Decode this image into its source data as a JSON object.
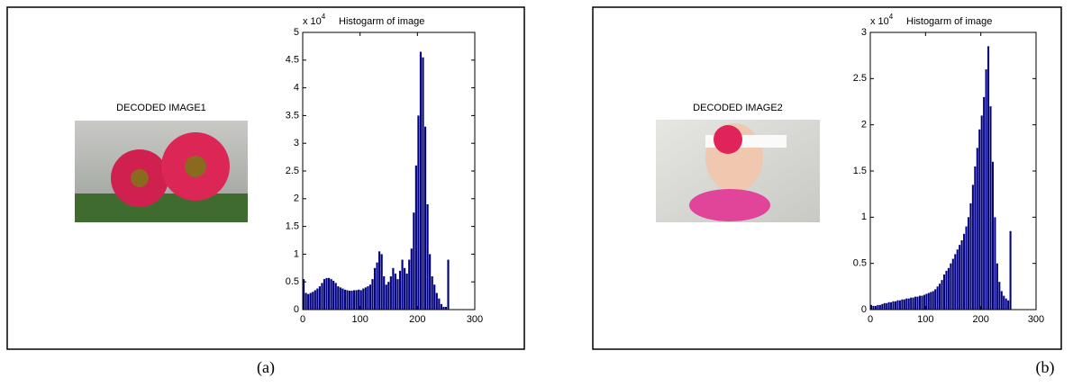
{
  "panels": [
    {
      "image_title": "DECODED IMAGE1",
      "label": "(a)"
    },
    {
      "image_title": "DECODED IMAGE2",
      "label": "(b)"
    }
  ],
  "chart_data": [
    {
      "type": "histogram",
      "title": "Histogarm of image",
      "exponent_base": "x 10",
      "exponent_power": "4",
      "color": "#000080",
      "bins": [
        0,
        4,
        8,
        12,
        16,
        20,
        24,
        28,
        32,
        36,
        40,
        44,
        48,
        52,
        56,
        60,
        64,
        68,
        72,
        76,
        80,
        84,
        88,
        92,
        96,
        100,
        104,
        108,
        112,
        116,
        120,
        124,
        128,
        132,
        136,
        140,
        144,
        148,
        152,
        156,
        160,
        164,
        168,
        172,
        176,
        180,
        184,
        188,
        192,
        196,
        200,
        204,
        208,
        212,
        216,
        220,
        224,
        228,
        232,
        236,
        240,
        244,
        248,
        252,
        256
      ],
      "values": [
        0.55,
        0.3,
        0.28,
        0.3,
        0.32,
        0.35,
        0.38,
        0.42,
        0.48,
        0.55,
        0.57,
        0.57,
        0.55,
        0.52,
        0.48,
        0.42,
        0.4,
        0.38,
        0.36,
        0.35,
        0.34,
        0.34,
        0.35,
        0.35,
        0.36,
        0.35,
        0.38,
        0.4,
        0.42,
        0.45,
        0.55,
        0.75,
        0.85,
        1.05,
        1.0,
        0.6,
        0.45,
        0.5,
        0.6,
        0.75,
        0.65,
        0.55,
        0.7,
        0.9,
        0.75,
        0.65,
        0.9,
        1.1,
        1.75,
        2.6,
        3.5,
        4.65,
        4.55,
        3.3,
        1.9,
        1.0,
        0.6,
        0.45,
        0.3,
        0.2,
        0.1,
        0.05,
        0.05,
        0.9
      ],
      "xlim": [
        0,
        300
      ],
      "xticks": [
        0,
        100,
        200,
        300
      ],
      "ylim": [
        0,
        5
      ],
      "yticks": [
        0,
        0.5,
        1,
        1.5,
        2,
        2.5,
        3,
        3.5,
        4,
        4.5,
        5
      ]
    },
    {
      "type": "histogram",
      "title": "Histogarm of image",
      "exponent_base": "x 10",
      "exponent_power": "4",
      "color": "#000080",
      "bins": [
        0,
        4,
        8,
        12,
        16,
        20,
        24,
        28,
        32,
        36,
        40,
        44,
        48,
        52,
        56,
        60,
        64,
        68,
        72,
        76,
        80,
        84,
        88,
        92,
        96,
        100,
        104,
        108,
        112,
        116,
        120,
        124,
        128,
        132,
        136,
        140,
        144,
        148,
        152,
        156,
        160,
        164,
        168,
        172,
        176,
        180,
        184,
        188,
        192,
        196,
        200,
        204,
        208,
        212,
        216,
        220,
        224,
        228,
        232,
        236,
        240,
        244,
        248,
        252,
        256
      ],
      "values": [
        0.05,
        0.04,
        0.04,
        0.05,
        0.05,
        0.06,
        0.07,
        0.07,
        0.08,
        0.08,
        0.09,
        0.09,
        0.1,
        0.1,
        0.11,
        0.11,
        0.12,
        0.12,
        0.13,
        0.13,
        0.14,
        0.14,
        0.15,
        0.15,
        0.16,
        0.17,
        0.18,
        0.19,
        0.2,
        0.22,
        0.25,
        0.28,
        0.32,
        0.38,
        0.42,
        0.45,
        0.5,
        0.55,
        0.6,
        0.65,
        0.7,
        0.75,
        0.82,
        0.9,
        1.0,
        1.15,
        1.35,
        1.55,
        1.75,
        1.95,
        2.1,
        2.3,
        2.6,
        2.85,
        2.2,
        1.6,
        1.0,
        0.5,
        0.3,
        0.2,
        0.15,
        0.12,
        0.1,
        0.85
      ],
      "xlim": [
        0,
        300
      ],
      "xticks": [
        0,
        100,
        200,
        300
      ],
      "ylim": [
        0,
        3
      ],
      "yticks": [
        0,
        0.5,
        1,
        1.5,
        2,
        2.5,
        3
      ]
    }
  ]
}
